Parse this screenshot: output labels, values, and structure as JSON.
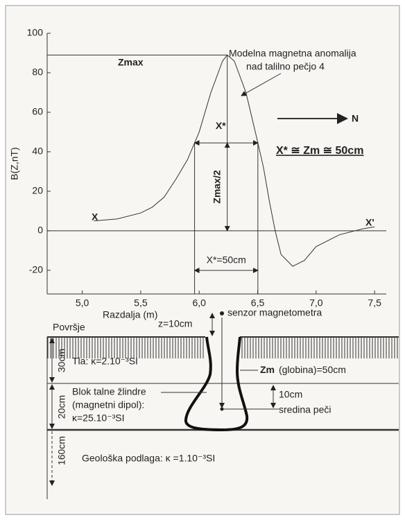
{
  "chart_data": {
    "type": "line",
    "y_label": "B(Z,nT)",
    "x_label": "Razdalja (m)",
    "x": [
      5.1,
      5.3,
      5.5,
      5.6,
      5.7,
      5.8,
      5.9,
      6.0,
      6.1,
      6.2,
      6.24,
      6.3,
      6.4,
      6.5,
      6.55,
      6.6,
      6.65,
      6.7,
      6.8,
      6.9,
      7.0,
      7.2,
      7.4,
      7.5
    ],
    "series": [
      {
        "color": "#555555",
        "values": [
          5,
          6,
          9,
          12,
          17,
          26,
          36,
          50,
          70,
          86,
          89,
          86,
          70,
          45,
          32,
          15,
          0,
          -12,
          -18,
          -15,
          -8,
          -2,
          1,
          2
        ]
      }
    ],
    "xlim": [
      4.7,
      7.6
    ],
    "ylim": [
      -32,
      100
    ],
    "xticks": [
      {
        "value": 5,
        "label": "5,0"
      },
      {
        "value": 5.5,
        "label": "5,5"
      },
      {
        "value": 6,
        "label": "6,0"
      },
      {
        "value": 6.5,
        "label": "6,5"
      },
      {
        "value": 7,
        "label": "7,0"
      },
      {
        "value": 7.5,
        "label": "7,5"
      }
    ],
    "yticks": [
      100,
      80,
      60,
      40,
      20,
      0,
      -20
    ],
    "annotations": {
      "zmax": "Zmax",
      "curve_name_1": "Modelna magnetna anomalija",
      "curve_name_2": "nad talilno pečjo 4",
      "x_star": "X*",
      "equation": "X* ≅ Zm ≅ 50cm",
      "zmax_half": "Zmax/2",
      "x_star_width": "X*=50cm",
      "x_start": "X",
      "x_end": "X'",
      "north": "N"
    }
  },
  "diagram": {
    "sensor": "senzor magnetometra",
    "sensor_height": "z=10cm",
    "surface": "Površje",
    "soil_thickness": "30cm",
    "soil": "Tla: κ=2.10⁻³SI",
    "depth_bold": "Zm",
    "depth": "(globina)=50cm",
    "block_1": "Blok talne žlindre",
    "block_2": "(magnetni dipol):",
    "block_3": "κ=25.10⁻³SI",
    "block_thickness": "20cm",
    "center_offset": "10cm",
    "center": "sredina peči",
    "bedrock_thickness": "160cm",
    "bedrock": "Geološka podlaga: κ =1.10⁻³SI"
  }
}
